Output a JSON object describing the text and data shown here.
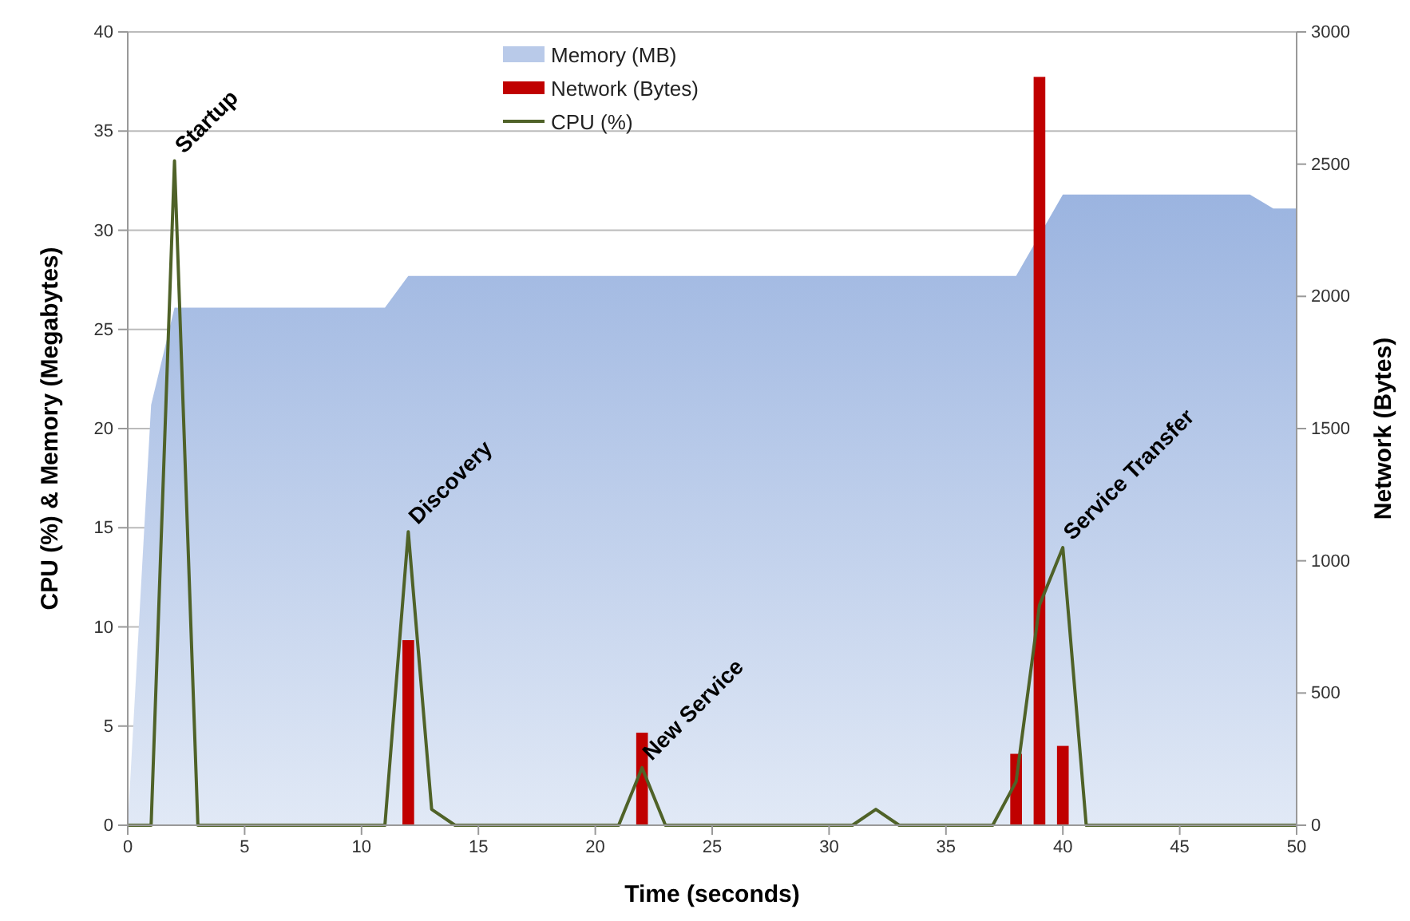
{
  "chart_data": {
    "type": "area",
    "x": [
      0,
      1,
      2,
      3,
      4,
      5,
      6,
      7,
      8,
      9,
      10,
      11,
      12,
      13,
      14,
      15,
      16,
      17,
      18,
      19,
      20,
      21,
      22,
      23,
      24,
      25,
      26,
      27,
      28,
      29,
      30,
      31,
      32,
      33,
      34,
      35,
      36,
      37,
      38,
      39,
      40,
      41,
      42,
      43,
      44,
      45,
      46,
      47,
      48,
      49,
      50
    ],
    "xlabel": "Time (seconds)",
    "ylabel": "CPU (%) & Memory (Megabytes)",
    "y2label": "Network (Bytes)",
    "xlim": [
      0,
      50
    ],
    "xticks": [
      0,
      5,
      10,
      15,
      20,
      25,
      30,
      35,
      40,
      45,
      50
    ],
    "ylim": [
      0,
      40
    ],
    "yticks": [
      0,
      5,
      10,
      15,
      20,
      25,
      30,
      35,
      40
    ],
    "y2lim": [
      0,
      3000
    ],
    "y2ticks": [
      0,
      500,
      1000,
      1500,
      2000,
      2500,
      3000
    ],
    "grid": "y",
    "legend": "top",
    "series": [
      {
        "name": "Memory (MB)",
        "color": "#9bb4e0",
        "values": [
          0,
          21.2,
          26.1,
          26.1,
          26.1,
          26.1,
          26.1,
          26.1,
          26.1,
          26.1,
          26.1,
          26.1,
          27.7,
          27.7,
          27.7,
          27.7,
          27.7,
          27.7,
          27.7,
          27.7,
          27.7,
          27.7,
          27.7,
          27.7,
          27.7,
          27.7,
          27.7,
          27.7,
          27.7,
          27.7,
          27.7,
          27.7,
          27.7,
          27.7,
          27.7,
          27.7,
          27.7,
          27.7,
          27.7,
          null,
          31.8,
          31.8,
          31.8,
          31.8,
          31.8,
          31.8,
          31.8,
          31.8,
          31.8,
          31.1,
          31.1
        ]
      },
      {
        "name": "Network (Bytes)",
        "type": "bar",
        "axis": "y2",
        "color": "#c00000",
        "values": [
          null,
          null,
          null,
          null,
          null,
          null,
          null,
          null,
          null,
          null,
          null,
          null,
          700,
          null,
          null,
          null,
          null,
          null,
          null,
          null,
          null,
          null,
          350,
          null,
          null,
          null,
          null,
          null,
          null,
          null,
          null,
          null,
          null,
          null,
          null,
          null,
          null,
          null,
          270,
          2830,
          300,
          null,
          null,
          null,
          null,
          null,
          null,
          null,
          null,
          null,
          null
        ]
      },
      {
        "name": "CPU (%)",
        "type": "line",
        "color": "#4f6228",
        "line_style": "solid",
        "values": [
          0,
          0,
          33.5,
          0,
          0,
          0,
          0,
          0,
          0,
          0,
          0,
          0,
          14.8,
          0.8,
          0,
          0,
          0,
          0,
          0,
          0,
          0,
          0,
          2.9,
          0,
          0,
          0,
          0,
          0,
          0,
          0,
          0,
          0,
          0.8,
          0,
          0,
          0,
          0,
          0,
          2.2,
          11.1,
          14.0,
          0,
          0,
          0,
          0,
          0,
          0,
          0,
          0,
          0,
          0
        ]
      }
    ],
    "annotations": [
      {
        "text": "Startup",
        "x": 2,
        "y": 33.5
      },
      {
        "text": "Discovery",
        "x": 12,
        "y": 14.8
      },
      {
        "text": "New Service",
        "x": 22,
        "y": 2.9
      },
      {
        "text": "Service Transfer",
        "x": 40,
        "y": 14.0
      }
    ]
  }
}
